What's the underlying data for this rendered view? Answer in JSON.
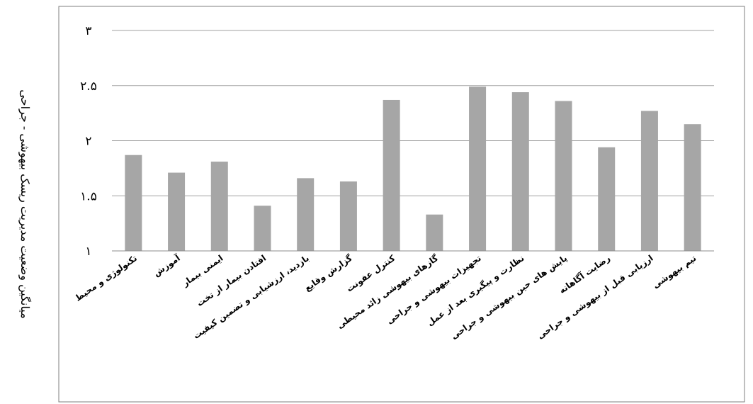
{
  "chart_data": {
    "type": "bar",
    "title": "",
    "xlabel": "",
    "ylabel": "میانگین وضعیت مدیریت ریسک بیهوشی - جراحی",
    "ylim": [
      1,
      3
    ],
    "yticks": [
      "۱",
      "۱.۵",
      "۲",
      "۲.۵",
      "۳"
    ],
    "ytick_values": [
      1,
      1.5,
      2,
      2.5,
      3
    ],
    "grid": true,
    "legend": "none",
    "categories": [
      "تکنولوژی و محیط",
      "آموزش",
      "ایمنی بیمار",
      "افتادن بیمار از تخت",
      "بازدید، ارزشیابی و تضمین کیفیت",
      "گزارش وقایع",
      "کنترل عفونت",
      "گازهای بیهوشی زائد محیطی",
      "تجهیزات بیهوشی و جراحی",
      "نظارت و پیگیری بعد از عمل",
      "پایش های حین بیهوشی و جراحی",
      "رضایت آگاهانه",
      "ارزیابی قبل از بیهوشی و جراحی",
      "تیم بیهوشی"
    ],
    "values": [
      1.87,
      1.71,
      1.81,
      1.41,
      1.66,
      1.63,
      2.37,
      1.33,
      2.49,
      2.44,
      2.36,
      1.94,
      2.27,
      2.15
    ],
    "bar_color": "#a6a6a6",
    "grid_color": "#a0a0a0"
  }
}
